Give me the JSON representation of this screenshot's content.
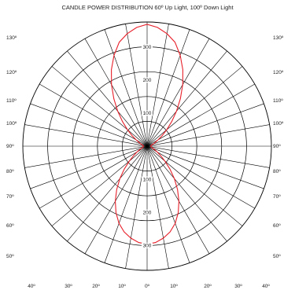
{
  "chart_data": {
    "type": "polar",
    "title": "CANDLE POWER DISTRIBUTION 60º Up Light, 100º Down Light",
    "radial_ticks": [
      {
        "value": 100,
        "label": "100"
      },
      {
        "value": 200,
        "label": "200"
      },
      {
        "value": 300,
        "label": "300"
      }
    ],
    "rmax": 375,
    "grid_circles": [
      75,
      150,
      225,
      300,
      375
    ],
    "left_angle_labels": [
      "130º",
      "120º",
      "110º",
      "100º",
      "90º",
      "80º",
      "70º",
      "60º",
      "50º"
    ],
    "right_angle_labels": [
      "130º",
      "120º",
      "110º",
      "100º",
      "90º",
      "80º",
      "70º",
      "60º",
      "50º"
    ],
    "bottom_angle_labels": [
      "40º",
      "30º",
      "20º",
      "10º",
      "0º",
      "10º",
      "20º",
      "30º",
      "40º"
    ],
    "series": [
      {
        "color": "#e8202a",
        "up_beam_angle_deg": 60,
        "down_beam_angle_deg": 100,
        "up_light": {
          "angles_from_vertical_deg": [
            0,
            5,
            10,
            15,
            20,
            25,
            30,
            35,
            40,
            45,
            50,
            55,
            60,
            65,
            70,
            75,
            80,
            85,
            90
          ],
          "candela": [
            368,
            360,
            345,
            325,
            292,
            255,
            215,
            175,
            138,
            105,
            77,
            55,
            38,
            27,
            20,
            15,
            12,
            11,
            10
          ]
        },
        "down_light": {
          "angles_from_vertical_deg": [
            0,
            5,
            10,
            15,
            20,
            25,
            30,
            35,
            40,
            45,
            50,
            55,
            60,
            65,
            70,
            75,
            80,
            85,
            90
          ],
          "candela": [
            296,
            292,
            282,
            268,
            248,
            222,
            192,
            160,
            128,
            97,
            70,
            50,
            35,
            25,
            18,
            14,
            12,
            11,
            10
          ]
        }
      }
    ]
  }
}
